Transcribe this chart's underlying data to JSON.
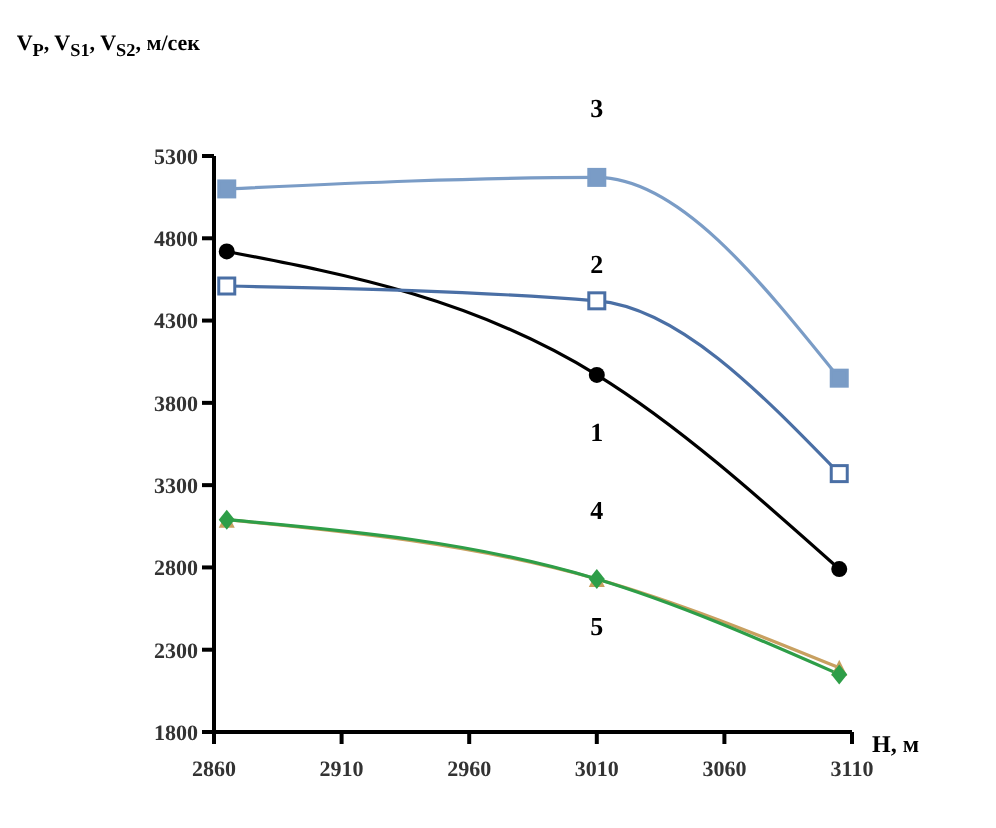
{
  "chart_data": {
    "type": "line",
    "ylabel": "V$_{P}$, V$_{S1}$, V$_{S2}$, м/сек",
    "xlabel": "H, м",
    "xlim": [
      2860,
      3110
    ],
    "xticks": [
      2860,
      2910,
      2960,
      3010,
      3060,
      3110
    ],
    "ylim": [
      1800,
      5300
    ],
    "yticks": [
      1800,
      2300,
      2800,
      3300,
      3800,
      4300,
      4800,
      5300
    ],
    "grid": false,
    "legend": false,
    "series": [
      {
        "name": "1",
        "color": "#000000",
        "marker": "circle",
        "x": [
          2865,
          3010,
          3105
        ],
        "values": [
          4720,
          3970,
          2790
        ]
      },
      {
        "name": "2",
        "color": "#4a6fa5",
        "marker": "square",
        "x": [
          2865,
          3010,
          3105
        ],
        "values": [
          4510,
          4420,
          3370
        ]
      },
      {
        "name": "3",
        "color": "#7a9cc6",
        "marker": "square",
        "x": [
          2865,
          3010,
          3105
        ],
        "values": [
          5100,
          5170,
          3950
        ]
      },
      {
        "name": "5",
        "color": "#c8a060",
        "marker": "triangle",
        "x": [
          2865,
          3010,
          3105
        ],
        "values": [
          3090,
          2730,
          2190
        ]
      },
      {
        "name": "4",
        "color": "#2e9e48",
        "marker": "diamond",
        "x": [
          2865,
          3010,
          3105
        ],
        "values": [
          3090,
          2730,
          2150
        ]
      }
    ]
  }
}
